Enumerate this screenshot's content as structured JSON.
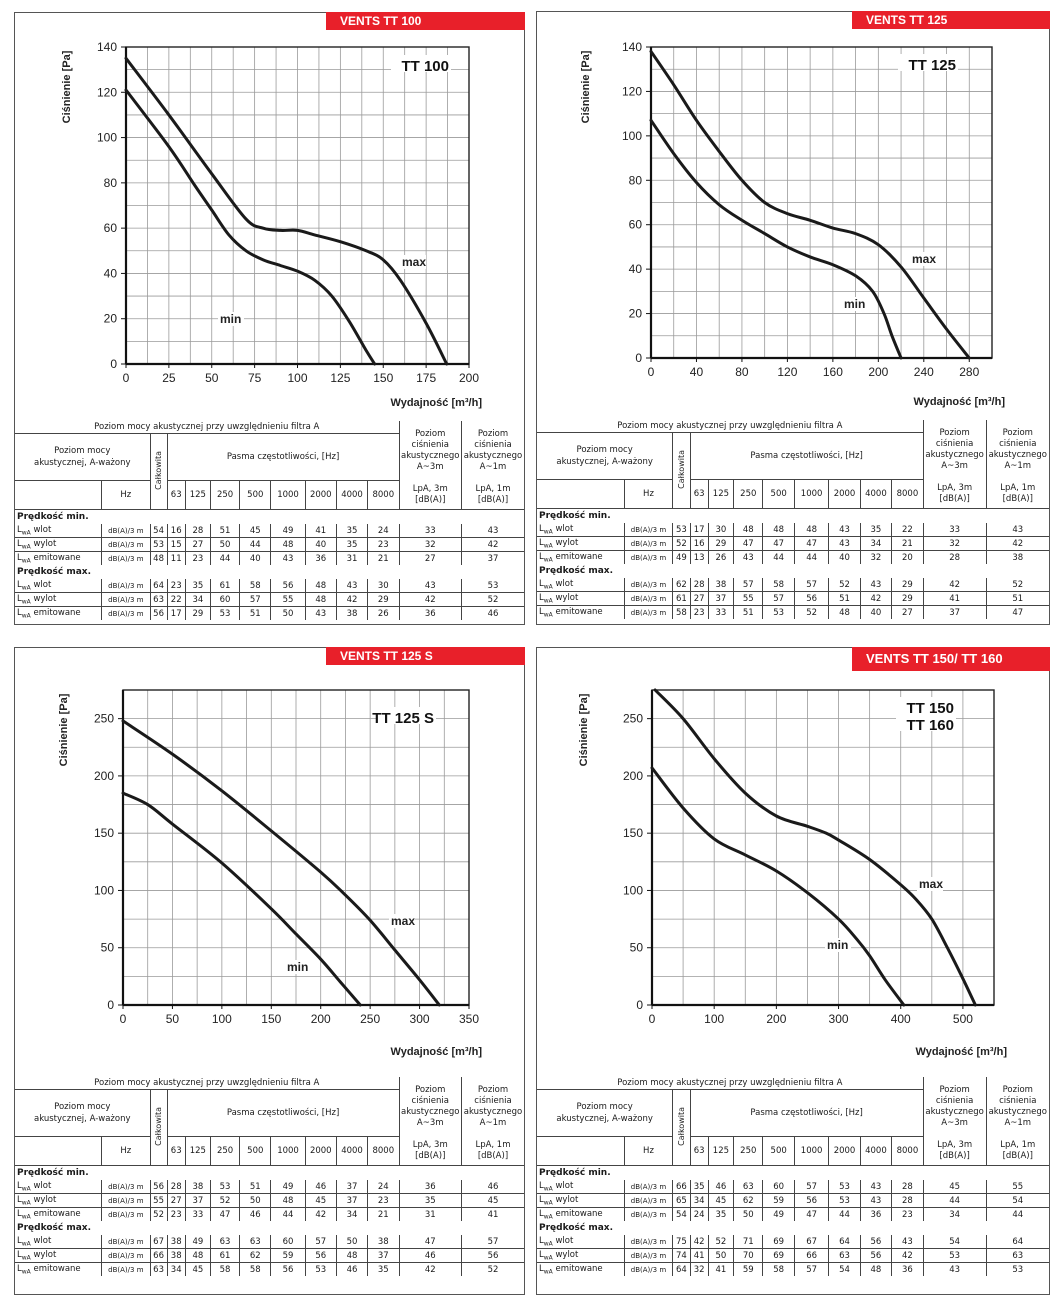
{
  "common": {
    "ylabel": "Ciśnienie [Pa]",
    "xlabel": "Wydajność [m³/h]",
    "table_title": "Poziom mocy akustycznej przy uwzględnieniu filtra A",
    "col_label": "Poziom mocy akustycznej, A-ważony",
    "col_total": "Całkowita",
    "col_bands": "Pasma częstotliwości, [Hz]",
    "col_lpa3": "Poziom ciśnienia akustycznego A~3m",
    "col_lpa1": "Poziom ciśnienia akustycznego A~1m",
    "hz": "Hz",
    "lpa3_unit": "LpA, 3m [dB(A)]",
    "lpa1_unit": "LpA, 1m [dB(A)]",
    "freqs": [
      "63",
      "125",
      "250",
      "500",
      "1000",
      "2000",
      "4000",
      "8000"
    ],
    "section_min": "Prędkość min.",
    "section_max": "Prędkość max.",
    "unit": "dB(A)/3 m",
    "row_prefix": "L",
    "row_sub": "wA",
    "row_names": [
      "wlot",
      "wylot",
      "emitowane"
    ],
    "curve_min": "min",
    "curve_max": "max",
    "accent_color": "#e8202a"
  },
  "chart_data": [
    {
      "type": "line",
      "banner": "VENTS TT 100",
      "title": "TT 100",
      "xlabel": "Wydajność [m³/h]",
      "ylabel": "Ciśnienie [Pa]",
      "xlim": [
        0,
        200
      ],
      "ylim": [
        0,
        140
      ],
      "xticks": [
        0,
        25,
        50,
        75,
        100,
        125,
        150,
        175,
        200
      ],
      "yticks": [
        0,
        20,
        40,
        60,
        80,
        100,
        120,
        140
      ],
      "grid": true,
      "series": [
        {
          "name": "max",
          "x": [
            0,
            25,
            50,
            70,
            80,
            90,
            100,
            110,
            125,
            140,
            150,
            160,
            175,
            187
          ],
          "y": [
            135,
            110,
            84,
            64,
            60,
            59,
            59,
            57,
            54,
            50,
            46,
            37,
            18,
            0
          ]
        },
        {
          "name": "min",
          "x": [
            0,
            25,
            40,
            50,
            60,
            70,
            80,
            90,
            100,
            110,
            120,
            130,
            140,
            145
          ],
          "y": [
            121,
            96,
            79,
            68,
            57,
            50,
            46,
            43.5,
            41,
            37,
            30,
            19,
            6,
            0
          ]
        }
      ],
      "table": {
        "min": [
          {
            "total": 54,
            "bands": [
              16,
              28,
              51,
              45,
              49,
              41,
              35,
              24
            ],
            "lpa3": 33,
            "lpa1": 43
          },
          {
            "total": 53,
            "bands": [
              15,
              27,
              50,
              44,
              48,
              40,
              35,
              23
            ],
            "lpa3": 32,
            "lpa1": 42
          },
          {
            "total": 48,
            "bands": [
              11,
              23,
              44,
              40,
              43,
              36,
              31,
              21
            ],
            "lpa3": 27,
            "lpa1": 37
          }
        ],
        "max": [
          {
            "total": 64,
            "bands": [
              23,
              35,
              61,
              58,
              56,
              48,
              43,
              30
            ],
            "lpa3": 43,
            "lpa1": 53
          },
          {
            "total": 63,
            "bands": [
              22,
              34,
              60,
              57,
              55,
              48,
              42,
              29
            ],
            "lpa3": 42,
            "lpa1": 52
          },
          {
            "total": 56,
            "bands": [
              17,
              29,
              53,
              51,
              50,
              43,
              38,
              26
            ],
            "lpa3": 36,
            "lpa1": 46
          }
        ]
      }
    },
    {
      "type": "line",
      "banner": "VENTS TT 125",
      "title": "TT 125",
      "xlabel": "Wydajność [m³/h]",
      "ylabel": "Ciśnienie [Pa]",
      "xlim": [
        0,
        300
      ],
      "ylim": [
        0,
        140
      ],
      "xticks": [
        0,
        40,
        80,
        120,
        160,
        200,
        240,
        280
      ],
      "yticks": [
        0,
        20,
        40,
        60,
        80,
        100,
        120,
        140
      ],
      "grid": true,
      "series": [
        {
          "name": "max",
          "x": [
            0,
            20,
            40,
            60,
            80,
            100,
            120,
            140,
            160,
            180,
            200,
            220,
            240,
            260,
            280
          ],
          "y": [
            138,
            123,
            107,
            93,
            80,
            70,
            65,
            62,
            58.5,
            56,
            51,
            41,
            27,
            13,
            0
          ]
        },
        {
          "name": "min",
          "x": [
            0,
            20,
            40,
            60,
            80,
            100,
            120,
            140,
            160,
            180,
            195,
            205,
            212,
            220
          ],
          "y": [
            107,
            92,
            79,
            69,
            62,
            56,
            50,
            45.5,
            42,
            37,
            30,
            20,
            10,
            0
          ]
        }
      ],
      "table": {
        "min": [
          {
            "total": 53,
            "bands": [
              17,
              30,
              48,
              48,
              48,
              43,
              35,
              22
            ],
            "lpa3": 33,
            "lpa1": 43
          },
          {
            "total": 52,
            "bands": [
              16,
              29,
              47,
              47,
              47,
              43,
              34,
              21
            ],
            "lpa3": 32,
            "lpa1": 42
          },
          {
            "total": 49,
            "bands": [
              13,
              26,
              43,
              44,
              44,
              40,
              32,
              20
            ],
            "lpa3": 28,
            "lpa1": 38
          }
        ],
        "max": [
          {
            "total": 62,
            "bands": [
              28,
              38,
              57,
              58,
              57,
              52,
              43,
              29
            ],
            "lpa3": 42,
            "lpa1": 52
          },
          {
            "total": 61,
            "bands": [
              27,
              37,
              55,
              57,
              56,
              51,
              42,
              29
            ],
            "lpa3": 41,
            "lpa1": 51
          },
          {
            "total": 58,
            "bands": [
              23,
              33,
              51,
              53,
              52,
              48,
              40,
              27
            ],
            "lpa3": 37,
            "lpa1": 47
          }
        ]
      }
    },
    {
      "type": "line",
      "banner": "VENTS TT 125 S",
      "title": "TT 125 S",
      "xlabel": "Wydajność [m³/h]",
      "ylabel": "Ciśnienie [Pa]",
      "xlim": [
        0,
        350
      ],
      "ylim": [
        0,
        275
      ],
      "xticks": [
        0,
        50,
        100,
        150,
        200,
        250,
        300,
        350
      ],
      "yticks": [
        0,
        50,
        100,
        150,
        200,
        250
      ],
      "grid": true,
      "series": [
        {
          "name": "max",
          "x": [
            0,
            50,
            100,
            150,
            200,
            225,
            250,
            275,
            300,
            320
          ],
          "y": [
            248,
            219,
            187,
            152,
            116,
            96,
            74,
            48,
            22,
            0
          ]
        },
        {
          "name": "min",
          "x": [
            0,
            25,
            50,
            100,
            150,
            175,
            200,
            220,
            240
          ],
          "y": [
            185,
            175,
            158,
            124,
            84,
            62,
            40,
            20,
            0
          ]
        }
      ],
      "table": {
        "min": [
          {
            "total": 56,
            "bands": [
              28,
              38,
              53,
              51,
              49,
              46,
              37,
              24
            ],
            "lpa3": 36,
            "lpa1": 46
          },
          {
            "total": 55,
            "bands": [
              27,
              37,
              52,
              50,
              48,
              45,
              37,
              23
            ],
            "lpa3": 35,
            "lpa1": 45
          },
          {
            "total": 52,
            "bands": [
              23,
              33,
              47,
              46,
              44,
              42,
              34,
              21
            ],
            "lpa3": 31,
            "lpa1": 41
          }
        ],
        "max": [
          {
            "total": 67,
            "bands": [
              38,
              49,
              63,
              63,
              60,
              57,
              50,
              38
            ],
            "lpa3": 47,
            "lpa1": 57
          },
          {
            "total": 66,
            "bands": [
              38,
              48,
              61,
              62,
              59,
              56,
              48,
              37
            ],
            "lpa3": 46,
            "lpa1": 56
          },
          {
            "total": 63,
            "bands": [
              34,
              45,
              58,
              58,
              56,
              53,
              46,
              35
            ],
            "lpa3": 42,
            "lpa1": 52
          }
        ]
      }
    },
    {
      "type": "line",
      "banner": "VENTS TT 150/ TT 160",
      "title": "TT 150\nTT 160",
      "title_lines": [
        "TT 150",
        "TT 160"
      ],
      "xlabel": "Wydajność [m³/h]",
      "ylabel": "Ciśnienie [Pa]",
      "xlim": [
        0,
        550
      ],
      "ylim": [
        0,
        275
      ],
      "xticks": [
        0,
        100,
        200,
        300,
        400,
        500
      ],
      "yticks": [
        0,
        50,
        100,
        150,
        200,
        250
      ],
      "grid": true,
      "series": [
        {
          "name": "max",
          "x": [
            5,
            50,
            100,
            150,
            200,
            250,
            280,
            300,
            350,
            400,
            425,
            450,
            475,
            500,
            520
          ],
          "y": [
            275,
            250,
            215,
            185,
            165,
            156,
            150,
            144,
            127,
            105,
            92,
            75,
            50,
            23,
            0
          ]
        },
        {
          "name": "min",
          "x": [
            0,
            50,
            100,
            150,
            200,
            250,
            300,
            330,
            350,
            375,
            405
          ],
          "y": [
            207,
            172,
            145,
            131,
            117,
            98,
            75,
            57,
            43,
            22,
            0
          ]
        }
      ],
      "table": {
        "min": [
          {
            "total": 66,
            "bands": [
              35,
              46,
              63,
              60,
              57,
              53,
              43,
              28
            ],
            "lpa3": 45,
            "lpa1": 55
          },
          {
            "total": 65,
            "bands": [
              34,
              45,
              62,
              59,
              56,
              53,
              43,
              28
            ],
            "lpa3": 44,
            "lpa1": 54
          },
          {
            "total": 54,
            "bands": [
              24,
              35,
              50,
              49,
              47,
              44,
              36,
              23
            ],
            "lpa3": 34,
            "lpa1": 44
          }
        ],
        "max": [
          {
            "total": 75,
            "bands": [
              42,
              52,
              71,
              69,
              67,
              64,
              56,
              43
            ],
            "lpa3": 54,
            "lpa1": 64
          },
          {
            "total": 74,
            "bands": [
              41,
              50,
              70,
              69,
              66,
              63,
              56,
              42
            ],
            "lpa3": 53,
            "lpa1": 63
          },
          {
            "total": 64,
            "bands": [
              32,
              41,
              59,
              58,
              57,
              54,
              48,
              36
            ],
            "lpa3": 43,
            "lpa1": 53
          }
        ]
      }
    }
  ]
}
